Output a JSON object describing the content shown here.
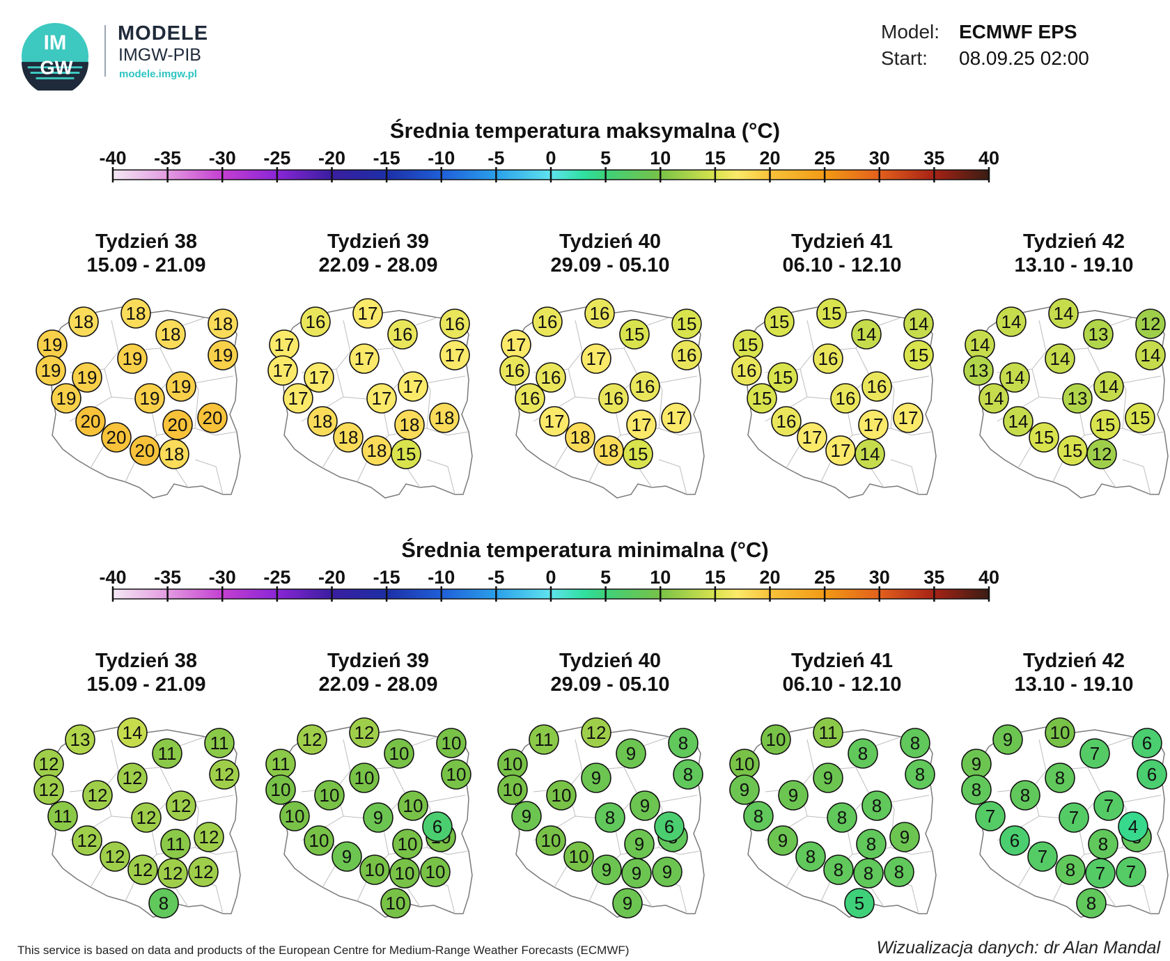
{
  "header": {
    "logo_letters_top": "IM",
    "logo_letters_bottom": "GW",
    "brand_title": "MODELE",
    "brand_subtitle": "IMGW-PIB",
    "brand_url": "modele.imgw.pl"
  },
  "model_info": {
    "model_label": "Model:",
    "model_value": "ECMWF EPS",
    "start_label": "Start:",
    "start_value": "08.09.25 02:00"
  },
  "color_scale": {
    "ticks": [
      "-40",
      "-35",
      "-30",
      "-25",
      "-20",
      "-15",
      "-10",
      "-5",
      "0",
      "5",
      "10",
      "15",
      "20",
      "25",
      "30",
      "35",
      "40"
    ],
    "range": [
      -40,
      40
    ],
    "colors": {
      "-40": "#f4e8f4",
      "-35": "#e39be0",
      "-30": "#c43fd1",
      "-25": "#8a26d6",
      "-20": "#3a1ea0",
      "-15": "#1d2fa6",
      "-10": "#1f5fd8",
      "-5": "#2aa0ea",
      "0": "#5fe3ee",
      "3": "#2fe0a0",
      "5": "#3ed17a",
      "10": "#78c247",
      "15": "#d9e34e",
      "17": "#fbe96a",
      "20": "#f8c33a",
      "25": "#f29a15",
      "30": "#e3601d",
      "35": "#a62215",
      "40": "#3a1d14"
    }
  },
  "sections": [
    {
      "title": "Średnia temperatura maksymalna (°C)",
      "panels": [
        {
          "week": "Tydzień 38",
          "dates": "15.09 - 21.09",
          "values": [
            18,
            18,
            18,
            19,
            18,
            19,
            19,
            19,
            19,
            19,
            19,
            19,
            20,
            20,
            20,
            20,
            20,
            18
          ]
        },
        {
          "week": "Tydzień 39",
          "dates": "22.09 - 28.09",
          "values": [
            16,
            17,
            16,
            17,
            16,
            17,
            17,
            17,
            17,
            17,
            17,
            17,
            18,
            18,
            18,
            18,
            18,
            15
          ]
        },
        {
          "week": "Tydzień 40",
          "dates": "29.09 - 05.10",
          "values": [
            16,
            16,
            15,
            17,
            15,
            16,
            16,
            17,
            16,
            16,
            16,
            16,
            17,
            17,
            17,
            18,
            18,
            15
          ]
        },
        {
          "week": "Tydzień 41",
          "dates": "06.10 - 12.10",
          "values": [
            15,
            15,
            14,
            15,
            14,
            15,
            16,
            16,
            15,
            16,
            15,
            16,
            17,
            17,
            16,
            17,
            17,
            14
          ]
        },
        {
          "week": "Tydzień 42",
          "dates": "13.10 - 19.10",
          "values": [
            14,
            14,
            12,
            14,
            13,
            14,
            13,
            14,
            14,
            14,
            14,
            13,
            15,
            15,
            14,
            15,
            15,
            12
          ]
        }
      ]
    },
    {
      "title": "Średnia temperatura minimalna (°C)",
      "panels": [
        {
          "week": "Tydzień 38",
          "dates": "15.09 - 21.09",
          "values": [
            13,
            14,
            11,
            12,
            11,
            12,
            12,
            12,
            12,
            12,
            11,
            12,
            11,
            12,
            12,
            12,
            12,
            12,
            12,
            8
          ]
        },
        {
          "week": "Tydzień 39",
          "dates": "22.09 - 28.09",
          "values": [
            12,
            12,
            10,
            11,
            10,
            10,
            10,
            10,
            10,
            10,
            10,
            9,
            10,
            10,
            10,
            9,
            10,
            10,
            10,
            10,
            6
          ]
        },
        {
          "week": "Tydzień 40",
          "dates": "29.09 - 05.10",
          "values": [
            11,
            12,
            8,
            10,
            9,
            8,
            10,
            9,
            10,
            9,
            9,
            8,
            9,
            8,
            10,
            10,
            9,
            9,
            9,
            9,
            6
          ]
        },
        {
          "week": "Tydzień 41",
          "dates": "06.10 - 12.10",
          "values": [
            10,
            11,
            8,
            10,
            8,
            8,
            9,
            9,
            9,
            8,
            8,
            8,
            8,
            9,
            9,
            8,
            8,
            8,
            8,
            5
          ]
        },
        {
          "week": "Tydzień 42",
          "dates": "13.10 - 19.10",
          "values": [
            9,
            10,
            6,
            9,
            7,
            6,
            8,
            8,
            8,
            7,
            7,
            7,
            8,
            8,
            6,
            7,
            8,
            7,
            7,
            8,
            4
          ]
        }
      ]
    }
  ],
  "footer": {
    "credit": "This service is based on data and products of the European Centre for Medium-Range Weather Forecasts (ECMWF)",
    "author": "Wizualizacja danych: dr Alan Mandal"
  }
}
